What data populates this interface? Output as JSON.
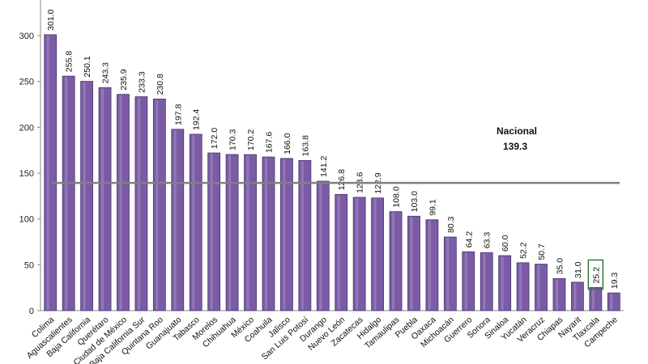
{
  "chart_data": {
    "type": "bar",
    "categories": [
      "Colima",
      "Aguascalientes",
      "Baja California",
      "Querétaro",
      "Ciudad de México",
      "Baja California Sur",
      "Quintana Roo",
      "Guanajuato",
      "Tabasco",
      "Morelos",
      "Chihuahua",
      "México",
      "Coahuila",
      "Jalisco",
      "San Luis Potosí",
      "Durango",
      "Nuevo León",
      "Zacatecas",
      "Hidalgo",
      "Tamaulipas",
      "Puebla",
      "Oaxaca",
      "Michoacán",
      "Guerrero",
      "Sonora",
      "Sinaloa",
      "Yucatán",
      "Veracruz",
      "Chiapas",
      "Nayarit",
      "Tlaxcala",
      "Campeche"
    ],
    "values": [
      301.0,
      255.8,
      250.1,
      243.3,
      235.9,
      233.3,
      230.8,
      197.8,
      192.4,
      172.0,
      170.3,
      170.2,
      167.6,
      166.0,
      163.8,
      141.2,
      126.8,
      123.6,
      122.9,
      108.0,
      103.0,
      99.1,
      80.3,
      64.2,
      63.3,
      60.0,
      52.2,
      50.7,
      35.0,
      31.0,
      25.2,
      19.3
    ],
    "value_labels": [
      "301.0",
      "255.8",
      "250.1",
      "243.3",
      "235.9",
      "233.3",
      "230.8",
      "197.8",
      "192.4",
      "172.0",
      "170.3",
      "170.2",
      "167.6",
      "166.0",
      "163.8",
      "141.2",
      "126.8",
      "123.6",
      "122.9",
      "108.0",
      "103.0",
      "99.1",
      "80.3",
      "64.2",
      "63.3",
      "60.0",
      "52.2",
      "50.7",
      "35.0",
      "31.0",
      "25.2",
      "19.3"
    ],
    "yticks": [
      "0",
      "50",
      "100",
      "150",
      "200",
      "250",
      "300"
    ],
    "ylim": [
      0,
      300
    ],
    "reference_line": {
      "label": "Nacional",
      "value": 139.3,
      "value_label": "139.3"
    },
    "highlighted_category": "Tlaxcala",
    "title": "",
    "xlabel": "",
    "ylabel": "",
    "grid": false,
    "colors": {
      "bar_fill": "#7B5BA6",
      "bar_stroke": "#4B3570",
      "reference_line": "#808080",
      "highlight_box": "#2E7D32",
      "axis": "#888888"
    }
  }
}
